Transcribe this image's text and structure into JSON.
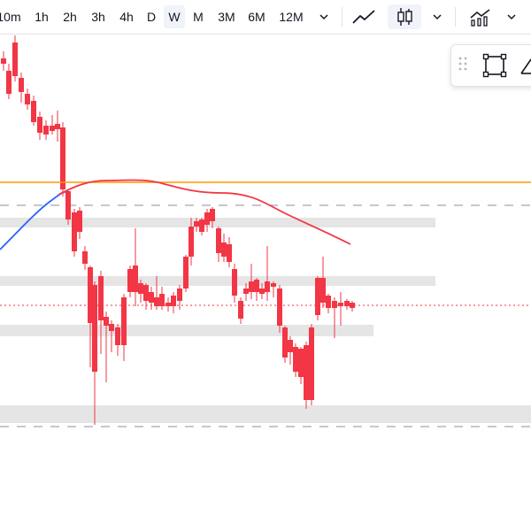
{
  "toolbar": {
    "timeframes": [
      {
        "label": "10m",
        "active": false
      },
      {
        "label": "1h",
        "active": false
      },
      {
        "label": "2h",
        "active": false
      },
      {
        "label": "3h",
        "active": false
      },
      {
        "label": "4h",
        "active": false
      },
      {
        "label": "D",
        "active": false
      },
      {
        "label": "W",
        "active": true
      },
      {
        "label": "M",
        "active": false
      },
      {
        "label": "3M",
        "active": false
      },
      {
        "label": "6M",
        "active": false
      },
      {
        "label": "12M",
        "active": false
      }
    ],
    "icons": [
      "chevron-down-icon",
      "line-chart-icon",
      "candlestick-chart-icon",
      "chevron-down-icon",
      "indicators-icon",
      "chevron-down-icon"
    ]
  },
  "drawing_panel": {
    "icons": [
      "drag-handle-icon",
      "rectangle-tool-icon",
      "triangle-tool-icon"
    ]
  },
  "colors": {
    "bull": "#089981",
    "bear": "#f23645",
    "ma_fast": "#2962ff",
    "ma_slow": "#f23645",
    "horizontal_line": "#ff9800",
    "zone": "#dcdcdc",
    "price_line": "#f23645"
  }
}
